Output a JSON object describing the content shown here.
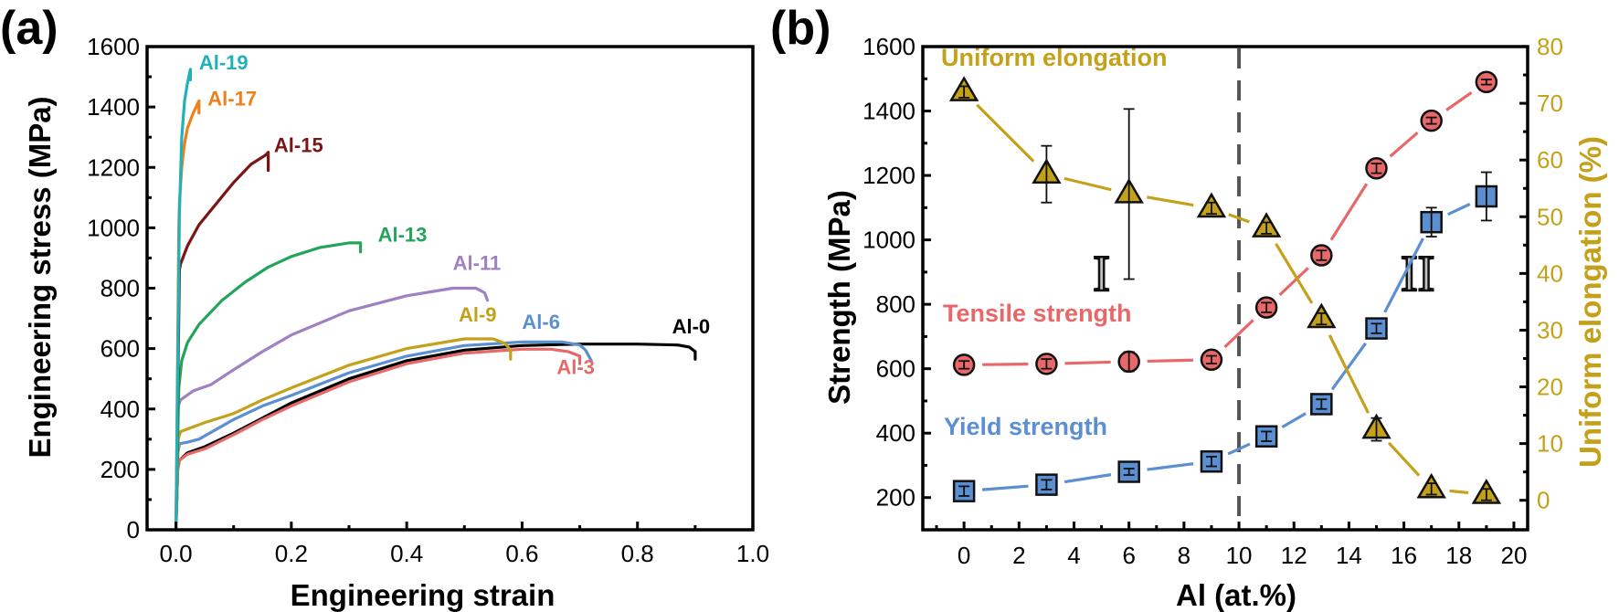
{
  "chart_data": [
    {
      "panel": "(a)",
      "type": "line",
      "title": "",
      "xlabel": "Engineering strain",
      "ylabel": "Engineering stress (MPa)",
      "xlim": [
        -0.05,
        1.0
      ],
      "ylim": [
        0,
        1600
      ],
      "xticks": [
        "0.0",
        "0.2",
        "0.4",
        "0.6",
        "0.8",
        "1.0"
      ],
      "xtick_values": [
        0,
        0.2,
        0.4,
        0.6,
        0.8,
        1.0
      ],
      "yticks": [
        "0",
        "200",
        "400",
        "600",
        "800",
        "1000",
        "1200",
        "1400",
        "1600"
      ],
      "ytick_values": [
        0,
        200,
        400,
        600,
        800,
        1000,
        1200,
        1400,
        1600
      ],
      "grid": false,
      "series": [
        {
          "name": "Al-0",
          "color": "#000000",
          "label_at": [
            0.86,
            650
          ],
          "x": [
            0,
            0.003,
            0.006,
            0.02,
            0.05,
            0.1,
            0.15,
            0.2,
            0.3,
            0.4,
            0.5,
            0.6,
            0.7,
            0.8,
            0.87,
            0.89,
            0.9,
            0.9
          ],
          "y": [
            0,
            200,
            230,
            255,
            275,
            320,
            370,
            420,
            500,
            560,
            595,
            610,
            615,
            615,
            612,
            605,
            590,
            565
          ]
        },
        {
          "name": "Al-3",
          "color": "#e8686a",
          "label_at": [
            0.66,
            515
          ],
          "x": [
            0,
            0.003,
            0.006,
            0.02,
            0.05,
            0.1,
            0.15,
            0.2,
            0.3,
            0.4,
            0.5,
            0.6,
            0.65,
            0.68,
            0.7,
            0.7
          ],
          "y": [
            0,
            200,
            230,
            250,
            268,
            315,
            365,
            410,
            490,
            550,
            585,
            598,
            598,
            590,
            575,
            550
          ]
        },
        {
          "name": "Al-6",
          "color": "#5b8fd1",
          "label_at": [
            0.6,
            665
          ],
          "x": [
            0,
            0.003,
            0.006,
            0.02,
            0.04,
            0.1,
            0.15,
            0.2,
            0.3,
            0.4,
            0.5,
            0.6,
            0.67,
            0.7,
            0.71,
            0.72
          ],
          "y": [
            0,
            250,
            285,
            290,
            300,
            365,
            410,
            445,
            520,
            575,
            610,
            622,
            622,
            612,
            595,
            560
          ]
        },
        {
          "name": "Al-9",
          "color": "#c4a11a",
          "label_at": [
            0.49,
            690
          ],
          "x": [
            0,
            0.004,
            0.008,
            0.05,
            0.1,
            0.15,
            0.2,
            0.3,
            0.4,
            0.5,
            0.55,
            0.57,
            0.58,
            0.58
          ],
          "y": [
            0,
            300,
            325,
            355,
            385,
            430,
            470,
            545,
            600,
            632,
            632,
            618,
            595,
            565
          ]
        },
        {
          "name": "Al-11",
          "color": "#a07fc2",
          "label_at": [
            0.48,
            860
          ],
          "x": [
            0,
            0.004,
            0.008,
            0.03,
            0.06,
            0.1,
            0.15,
            0.2,
            0.3,
            0.4,
            0.48,
            0.52,
            0.535,
            0.54
          ],
          "y": [
            0,
            410,
            430,
            460,
            480,
            530,
            590,
            645,
            725,
            775,
            800,
            800,
            785,
            760
          ]
        },
        {
          "name": "Al-13",
          "color": "#22a55a",
          "label_at": [
            0.35,
            955
          ],
          "x": [
            0,
            0.005,
            0.01,
            0.02,
            0.04,
            0.08,
            0.12,
            0.16,
            0.2,
            0.25,
            0.3,
            0.32,
            0.32
          ],
          "y": [
            0,
            470,
            560,
            620,
            680,
            760,
            820,
            870,
            905,
            935,
            950,
            950,
            920
          ]
        },
        {
          "name": "Al-15",
          "color": "#7a1515",
          "label_at": [
            0.17,
            1250
          ],
          "x": [
            0,
            0.006,
            0.008,
            0.02,
            0.04,
            0.07,
            0.1,
            0.13,
            0.155,
            0.16,
            0.16
          ],
          "y": [
            0,
            860,
            880,
            940,
            1010,
            1080,
            1150,
            1210,
            1240,
            1250,
            1190
          ]
        },
        {
          "name": "Al-17",
          "color": "#ef7f1a",
          "label_at": [
            0.055,
            1405
          ],
          "x": [
            0,
            0.005,
            0.006,
            0.01,
            0.015,
            0.02,
            0.03,
            0.04,
            0.04
          ],
          "y": [
            0,
            1000,
            1080,
            1200,
            1280,
            1330,
            1380,
            1420,
            1380
          ]
        },
        {
          "name": "Al-19",
          "color": "#1fb3b9",
          "label_at": [
            0.04,
            1525
          ],
          "x": [
            0,
            0.006,
            0.01,
            0.015,
            0.02,
            0.025,
            0.025
          ],
          "y": [
            0,
            1050,
            1300,
            1420,
            1480,
            1525,
            1490
          ]
        }
      ]
    },
    {
      "panel": "(b)",
      "type": "line",
      "title": "",
      "xlabel": "Al (at.%)",
      "ylabel": "Strength (MPa)",
      "ylabel_right": "Uniform elongation (%)",
      "xlim": [
        -1.5,
        20.5
      ],
      "ylim": [
        100,
        1600
      ],
      "ylim_right": [
        -5.2,
        80
      ],
      "xticks": [
        "0",
        "2",
        "4",
        "6",
        "8",
        "10",
        "12",
        "14",
        "16",
        "18",
        "20"
      ],
      "xtick_values": [
        0,
        2,
        4,
        6,
        8,
        10,
        12,
        14,
        16,
        18,
        20
      ],
      "yticks": [
        "200",
        "400",
        "600",
        "800",
        "1000",
        "1200",
        "1400",
        "1600"
      ],
      "ytick_values": [
        200,
        400,
        600,
        800,
        1000,
        1200,
        1400,
        1600
      ],
      "yticks_right": [
        "0",
        "10",
        "20",
        "30",
        "40",
        "50",
        "60",
        "70",
        "80"
      ],
      "ytick_values_right": [
        0,
        10,
        20,
        30,
        40,
        50,
        60,
        70,
        80
      ],
      "grid": false,
      "x": [
        0,
        3,
        6,
        9,
        11,
        13,
        15,
        17,
        19
      ],
      "series": [
        {
          "name": "Tensile strength",
          "axis": "left",
          "marker": "circle",
          "color": "#e8686a",
          "values": [
            612,
            615,
            622,
            628,
            790,
            952,
            1222,
            1370,
            1490
          ],
          "errors": [
            12,
            15,
            30,
            12,
            15,
            15,
            15,
            10,
            8
          ]
        },
        {
          "name": "Yield strength",
          "axis": "left",
          "marker": "square",
          "color": "#5b8fd1",
          "values": [
            220,
            240,
            280,
            312,
            390,
            490,
            725,
            1055,
            1135
          ],
          "errors": [
            15,
            15,
            10,
            15,
            15,
            15,
            15,
            45,
            75
          ]
        },
        {
          "name": "Uniform elongation",
          "axis": "right",
          "marker": "triangle",
          "color": "#c4a11a",
          "values": [
            72,
            57.5,
            54,
            51.5,
            48,
            32,
            12.5,
            2,
            1
          ],
          "errors": [
            1,
            5,
            15,
            1,
            1,
            1,
            2,
            1,
            1
          ]
        }
      ],
      "annotations": [
        {
          "text": "I",
          "x": 5,
          "y": 900
        },
        {
          "text": "II",
          "x": 16.5,
          "y": 900
        },
        {
          "text": "divider",
          "x": 10
        }
      ]
    }
  ],
  "labels": {
    "panel_a": "(a)",
    "panel_b": "(b)",
    "a_xlabel": "Engineering strain",
    "a_ylabel": "Engineering stress (MPa)",
    "b_xlabel": "Al (at.%)",
    "b_ylabel": "Strength (MPa)",
    "b_ylabel_right": "Uniform elongation (%)",
    "uniform": "Uniform elongation",
    "tensile": "Tensile strength",
    "yield": "Yield strength",
    "region1": "I",
    "region2": "II"
  },
  "colors": {
    "tensile": "#e8686a",
    "yield": "#5b8fd1",
    "uniform": "#c4a11a",
    "divider": "#555555",
    "region": "#c0c0c0"
  }
}
